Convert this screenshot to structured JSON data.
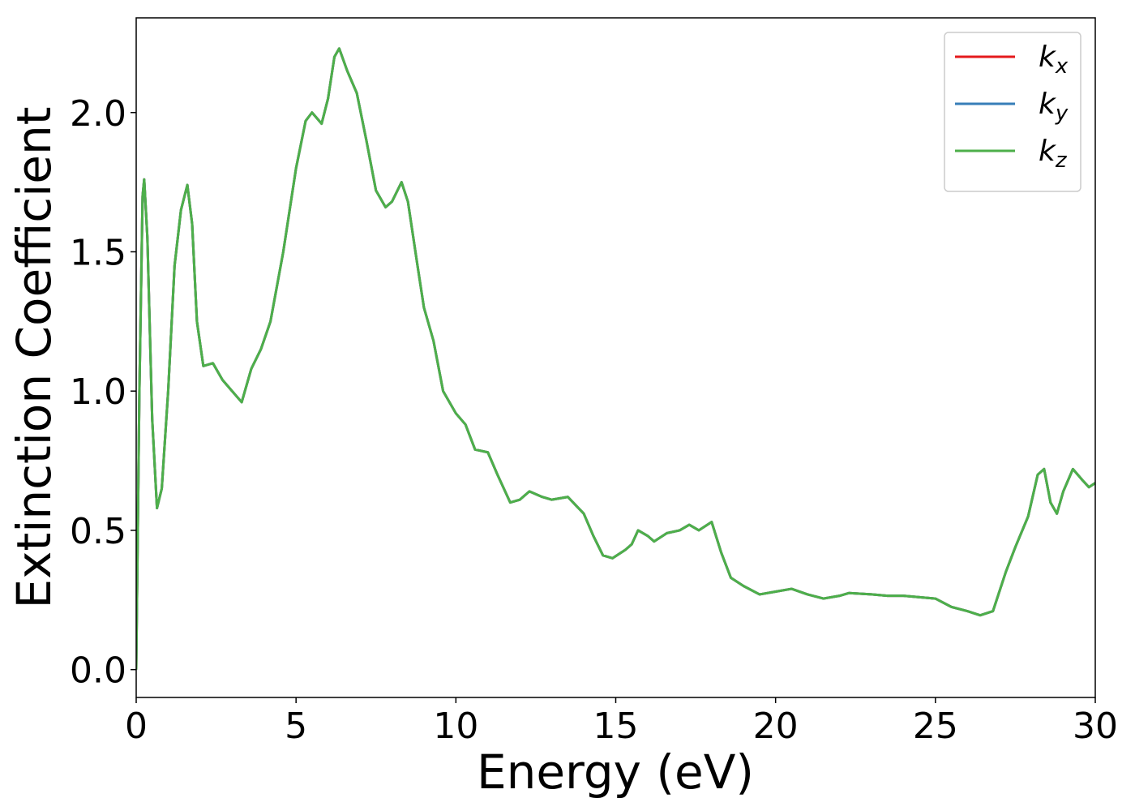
{
  "chart_data": {
    "type": "line",
    "xlabel": "Energy (eV)",
    "ylabel": "Extinction Coefficient",
    "x": [
      0,
      0.1,
      0.2,
      0.25,
      0.35,
      0.5,
      0.65,
      0.8,
      1.0,
      1.2,
      1.4,
      1.6,
      1.75,
      1.9,
      2.1,
      2.4,
      2.7,
      3.0,
      3.3,
      3.6,
      3.9,
      4.2,
      4.6,
      5.0,
      5.3,
      5.5,
      5.8,
      6.0,
      6.2,
      6.35,
      6.6,
      6.9,
      7.2,
      7.5,
      7.8,
      8.0,
      8.3,
      8.5,
      8.8,
      9.0,
      9.3,
      9.6,
      10.0,
      10.3,
      10.6,
      11.0,
      11.3,
      11.7,
      12.0,
      12.3,
      12.7,
      13.0,
      13.5,
      14.0,
      14.3,
      14.6,
      14.9,
      15.3,
      15.5,
      15.7,
      16.0,
      16.2,
      16.6,
      17.0,
      17.3,
      17.6,
      18.0,
      18.3,
      18.6,
      19.0,
      19.5,
      20.0,
      20.5,
      21.0,
      21.5,
      22.0,
      22.3,
      23.0,
      23.5,
      24.0,
      24.5,
      25.0,
      25.5,
      26.0,
      26.4,
      26.8,
      27.2,
      27.5,
      27.9,
      28.2,
      28.4,
      28.6,
      28.8,
      29.0,
      29.3,
      29.6,
      29.8,
      30.0
    ],
    "series": [
      {
        "name": "kx",
        "color": "#e41a1c",
        "values": [
          0,
          1.0,
          1.7,
          1.76,
          1.55,
          0.9,
          0.58,
          0.65,
          1.0,
          1.45,
          1.65,
          1.74,
          1.6,
          1.25,
          1.09,
          1.1,
          1.04,
          1.0,
          0.96,
          1.08,
          1.15,
          1.25,
          1.5,
          1.8,
          1.97,
          2.0,
          1.96,
          2.05,
          2.2,
          2.23,
          2.15,
          2.07,
          1.9,
          1.72,
          1.66,
          1.68,
          1.75,
          1.68,
          1.45,
          1.3,
          1.18,
          1.0,
          0.92,
          0.88,
          0.79,
          0.78,
          0.7,
          0.6,
          0.61,
          0.64,
          0.62,
          0.61,
          0.62,
          0.56,
          0.48,
          0.41,
          0.4,
          0.43,
          0.45,
          0.5,
          0.48,
          0.46,
          0.49,
          0.5,
          0.52,
          0.5,
          0.53,
          0.42,
          0.33,
          0.3,
          0.27,
          0.28,
          0.29,
          0.27,
          0.255,
          0.265,
          0.275,
          0.27,
          0.265,
          0.265,
          0.26,
          0.255,
          0.225,
          0.21,
          0.195,
          0.21,
          0.35,
          0.44,
          0.55,
          0.7,
          0.72,
          0.6,
          0.56,
          0.64,
          0.72,
          0.68,
          0.655,
          0.67
        ]
      },
      {
        "name": "ky",
        "color": "#377eb8",
        "values": [
          0,
          1.0,
          1.7,
          1.76,
          1.55,
          0.9,
          0.58,
          0.65,
          1.0,
          1.45,
          1.65,
          1.74,
          1.6,
          1.25,
          1.09,
          1.1,
          1.04,
          1.0,
          0.96,
          1.08,
          1.15,
          1.25,
          1.5,
          1.8,
          1.97,
          2.0,
          1.96,
          2.05,
          2.2,
          2.23,
          2.15,
          2.07,
          1.9,
          1.72,
          1.66,
          1.68,
          1.75,
          1.68,
          1.45,
          1.3,
          1.18,
          1.0,
          0.92,
          0.88,
          0.79,
          0.78,
          0.7,
          0.6,
          0.61,
          0.64,
          0.62,
          0.61,
          0.62,
          0.56,
          0.48,
          0.41,
          0.4,
          0.43,
          0.45,
          0.5,
          0.48,
          0.46,
          0.49,
          0.5,
          0.52,
          0.5,
          0.53,
          0.42,
          0.33,
          0.3,
          0.27,
          0.28,
          0.29,
          0.27,
          0.255,
          0.265,
          0.275,
          0.27,
          0.265,
          0.265,
          0.26,
          0.255,
          0.225,
          0.21,
          0.195,
          0.21,
          0.35,
          0.44,
          0.55,
          0.7,
          0.72,
          0.6,
          0.56,
          0.64,
          0.72,
          0.68,
          0.655,
          0.67
        ]
      },
      {
        "name": "kz",
        "color": "#4daf4a",
        "values": [
          0,
          1.0,
          1.7,
          1.76,
          1.55,
          0.9,
          0.58,
          0.65,
          1.0,
          1.45,
          1.65,
          1.74,
          1.6,
          1.25,
          1.09,
          1.1,
          1.04,
          1.0,
          0.96,
          1.08,
          1.15,
          1.25,
          1.5,
          1.8,
          1.97,
          2.0,
          1.96,
          2.05,
          2.2,
          2.23,
          2.15,
          2.07,
          1.9,
          1.72,
          1.66,
          1.68,
          1.75,
          1.68,
          1.45,
          1.3,
          1.18,
          1.0,
          0.92,
          0.88,
          0.79,
          0.78,
          0.7,
          0.6,
          0.61,
          0.64,
          0.62,
          0.61,
          0.62,
          0.56,
          0.48,
          0.41,
          0.4,
          0.43,
          0.45,
          0.5,
          0.48,
          0.46,
          0.49,
          0.5,
          0.52,
          0.5,
          0.53,
          0.42,
          0.33,
          0.3,
          0.27,
          0.28,
          0.29,
          0.27,
          0.255,
          0.265,
          0.275,
          0.27,
          0.265,
          0.265,
          0.26,
          0.255,
          0.225,
          0.21,
          0.195,
          0.21,
          0.35,
          0.44,
          0.55,
          0.7,
          0.72,
          0.6,
          0.56,
          0.64,
          0.72,
          0.68,
          0.655,
          0.67
        ]
      }
    ],
    "xlim": [
      0,
      30
    ],
    "xticks": [
      0,
      5,
      10,
      15,
      20,
      25,
      30
    ],
    "ylim": [
      -0.1,
      2.34
    ],
    "yticks": [
      {
        "value": 0,
        "label": "0.0"
      },
      0.5,
      {
        "value": 1,
        "label": "1.0"
      },
      1.5,
      {
        "value": 2,
        "label": "2.0"
      }
    ],
    "legend": "upper right"
  }
}
